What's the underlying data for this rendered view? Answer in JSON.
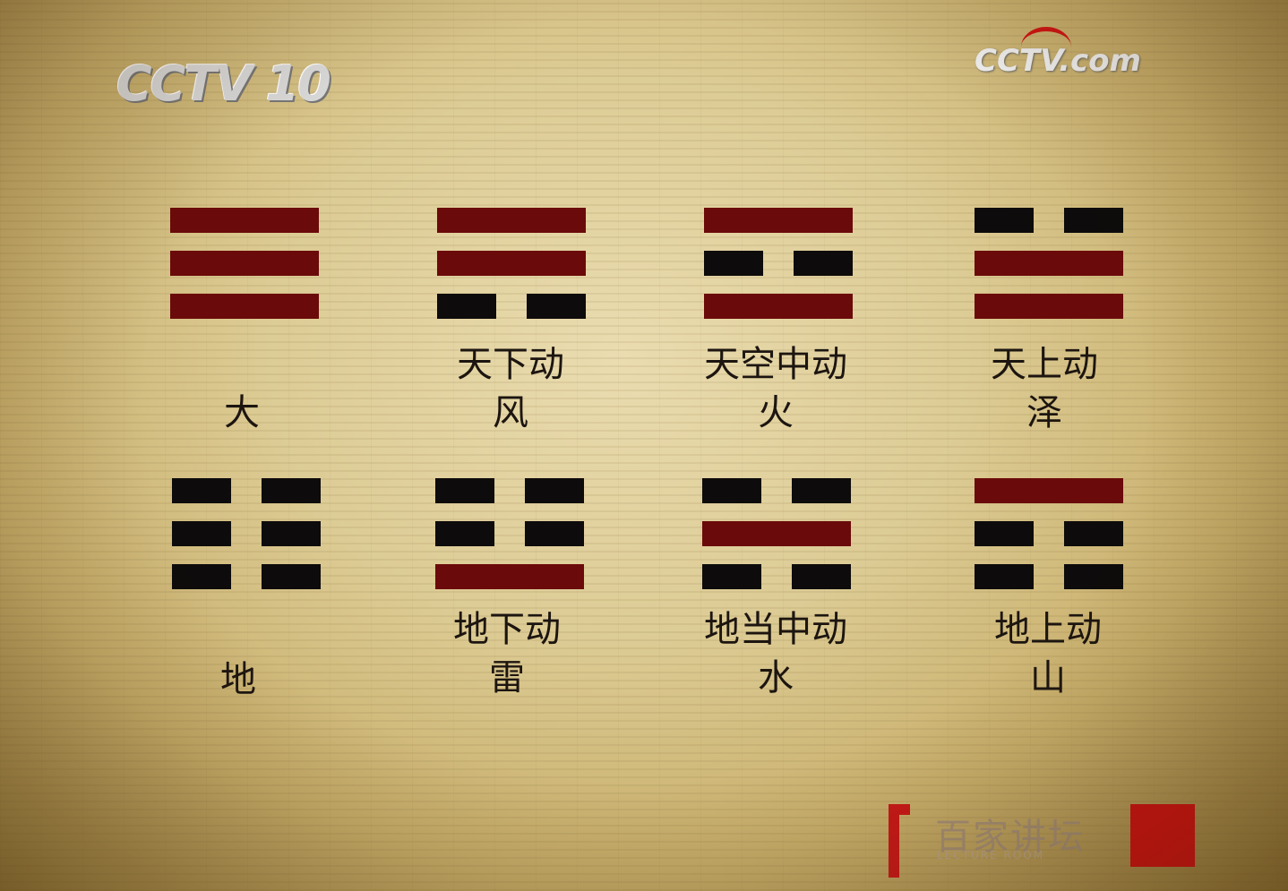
{
  "logos": {
    "left": "CCTV 10",
    "right": "CCTV.com",
    "brand_title": "百家讲坛",
    "brand_subtitle": "LECTURE ROOM"
  },
  "colors": {
    "yang": "#6b0a0a",
    "yin": "#0d0b0b",
    "text": "#1c1510",
    "brand_red": "#cc1111"
  },
  "trigrams": [
    {
      "lines": [
        "yang",
        "yang",
        "yang"
      ],
      "label": [
        "大"
      ]
    },
    {
      "lines": [
        "yang",
        "yang",
        "yin"
      ],
      "label": [
        "天下动",
        "风"
      ]
    },
    {
      "lines": [
        "yang",
        "yin",
        "yang"
      ],
      "label": [
        "天空中动",
        "火"
      ]
    },
    {
      "lines": [
        "yin",
        "yang",
        "yang"
      ],
      "label": [
        "天上动",
        "泽"
      ]
    },
    {
      "lines": [
        "yin",
        "yin",
        "yin"
      ],
      "label": [
        "地"
      ]
    },
    {
      "lines": [
        "yin",
        "yin",
        "yang"
      ],
      "label": [
        "地下动",
        "雷"
      ]
    },
    {
      "lines": [
        "yin",
        "yang",
        "yin"
      ],
      "label": [
        "地当中动",
        "水"
      ]
    },
    {
      "lines": [
        "yang",
        "yin",
        "yin"
      ],
      "label": [
        "地上动",
        "山"
      ]
    }
  ]
}
